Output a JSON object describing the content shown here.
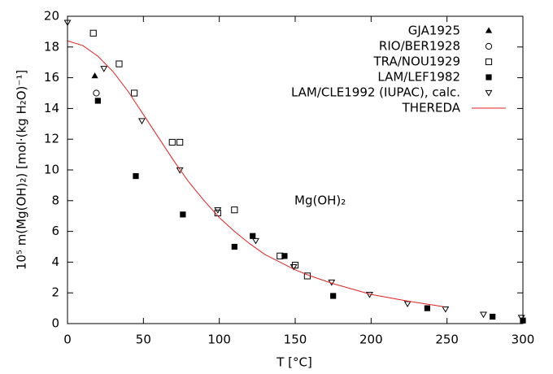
{
  "chart_data": {
    "type": "scatter",
    "x_label": "T [°C]",
    "y_label": "10⁵ m(Mg(OH)₂) [mol·(kg H₂O)⁻¹]",
    "annotation": "Mg(OH)₂",
    "xlim": [
      0,
      300
    ],
    "xticks": [
      0,
      50,
      100,
      150,
      200,
      250,
      300
    ],
    "ylim": [
      0,
      20
    ],
    "yticks": [
      0,
      2,
      4,
      6,
      8,
      10,
      12,
      14,
      16,
      18,
      20
    ],
    "grid": false,
    "legend": "top-right",
    "series": [
      {
        "name": "GJA1925",
        "color": "#000000",
        "marker": "triangle-filled",
        "x": [
          18
        ],
        "values": [
          16.1
        ]
      },
      {
        "name": "RIO/BER1928",
        "color": "#000000",
        "marker": "circle-open",
        "x": [
          19
        ],
        "values": [
          15.0
        ]
      },
      {
        "name": "TRA/NOU1929",
        "color": "#000000",
        "marker": "square-open",
        "x": [
          17,
          34,
          44,
          69,
          74,
          99,
          110,
          140,
          150,
          158
        ],
        "values": [
          18.9,
          16.9,
          15.0,
          11.8,
          11.8,
          7.2,
          7.4,
          4.4,
          3.8,
          3.1
        ]
      },
      {
        "name": "LAM/LEF1982",
        "color": "#000000",
        "marker": "square-filled",
        "x": [
          20,
          45,
          76,
          110,
          122,
          143,
          175,
          237,
          280,
          300
        ],
        "values": [
          14.5,
          9.6,
          7.1,
          5.0,
          5.7,
          4.4,
          1.8,
          1.0,
          0.45,
          0.2
        ]
      },
      {
        "name": "LAM/CLE1992 (IUPAC), calc.",
        "color": "#000000",
        "marker": "triangle-down-open",
        "x": [
          0,
          24,
          49,
          74,
          99,
          124,
          149,
          174,
          199,
          224,
          249,
          274,
          299
        ],
        "values": [
          19.6,
          16.6,
          13.2,
          10.0,
          7.4,
          5.4,
          3.7,
          2.7,
          1.9,
          1.3,
          0.95,
          0.6,
          0.4
        ]
      },
      {
        "name": "THEREDA",
        "color": "#e02020",
        "marker": "line",
        "x": [
          0,
          10,
          20,
          30,
          40,
          50,
          60,
          70,
          80,
          90,
          100,
          110,
          120,
          130,
          140,
          150,
          160,
          175,
          200,
          225,
          248
        ],
        "values": [
          18.4,
          18.1,
          17.4,
          16.4,
          15.1,
          13.6,
          12.1,
          10.6,
          9.2,
          8.0,
          6.9,
          6.0,
          5.2,
          4.5,
          4.0,
          3.5,
          3.1,
          2.6,
          1.9,
          1.45,
          1.1
        ]
      }
    ]
  }
}
